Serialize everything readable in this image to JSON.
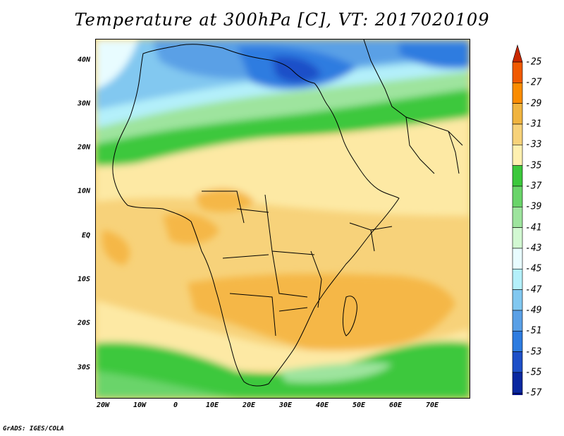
{
  "title": "Temperature at 300hPa [C], VT: 2017020109",
  "credit": "GrADS: IGES/COLA",
  "lat_ticks": [
    "40N",
    "30N",
    "20N",
    "10N",
    "EQ",
    "10S",
    "20S",
    "30S"
  ],
  "lon_ticks": [
    "20W",
    "10W",
    "0",
    "10E",
    "20E",
    "30E",
    "40E",
    "50E",
    "60E",
    "70E"
  ],
  "colorbar": {
    "labels": [
      "-25",
      "-27",
      "-29",
      "-31",
      "-33",
      "-35",
      "-37",
      "-39",
      "-41",
      "-43",
      "-45",
      "-47",
      "-49",
      "-51",
      "-53",
      "-55",
      "-57"
    ],
    "colors": [
      "#c82800",
      "#f05a00",
      "#fa8c00",
      "#f0b440",
      "#f7d27a",
      "#fff0b0",
      "#3cc83c",
      "#6ad46a",
      "#9ee49e",
      "#d2f8d2",
      "#e8fcff",
      "#b4f0fa",
      "#82c8f0",
      "#5aa0e6",
      "#2e7ce0",
      "#1e50c8",
      "#0a28a0",
      "#00108c"
    ],
    "min_extension_color": "#e6e6ff",
    "max_extension_color": "#c82800"
  },
  "colors": {
    "ocean_bg": "#fbd682",
    "warm_core": "#f5b747",
    "cold_north": "#2f78e0",
    "green_band": "#3dc83d",
    "coast_line": "#000000"
  }
}
